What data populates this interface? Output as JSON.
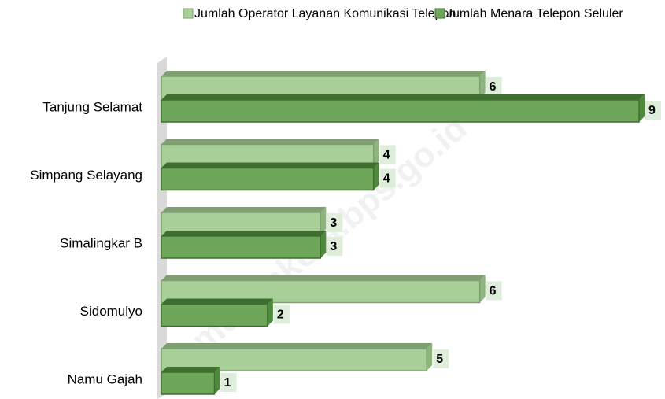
{
  "chart_data": {
    "type": "bar",
    "orientation": "horizontal",
    "categories": [
      "Tanjung Selamat",
      "Simpang Selayang",
      "Simalingkar B",
      "Sidomulyo",
      "Namu Gajah"
    ],
    "series": [
      {
        "name": "Jumlah Operator Layanan Komunikasi Telepon",
        "color": "#a9cf98",
        "values": [
          6,
          4,
          3,
          6,
          5
        ]
      },
      {
        "name": "Jumlah Menara Telepon Seluler",
        "color": "#6ea75a",
        "values": [
          9,
          4,
          3,
          2,
          1
        ]
      }
    ],
    "watermark": "medankota.bps.go.id"
  }
}
